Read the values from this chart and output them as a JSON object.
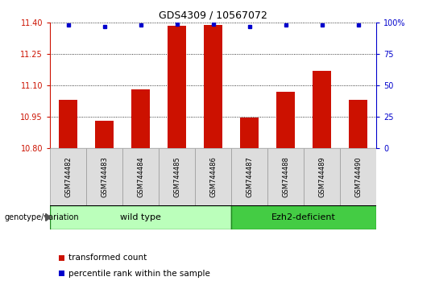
{
  "title": "GDS4309 / 10567072",
  "samples": [
    "GSM744482",
    "GSM744483",
    "GSM744484",
    "GSM744485",
    "GSM744486",
    "GSM744487",
    "GSM744488",
    "GSM744489",
    "GSM744490"
  ],
  "transformed_count": [
    11.03,
    10.93,
    11.08,
    11.385,
    11.39,
    10.945,
    11.07,
    11.17,
    11.03
  ],
  "percentile_rank": [
    98,
    97,
    98,
    99,
    99,
    97,
    98,
    98,
    98
  ],
  "ylim_left": [
    10.8,
    11.4
  ],
  "ylim_right": [
    0,
    100
  ],
  "yticks_left": [
    10.8,
    10.95,
    11.1,
    11.25,
    11.4
  ],
  "yticks_right": [
    0,
    25,
    50,
    75,
    100
  ],
  "bar_color": "#cc1100",
  "dot_color": "#0000cc",
  "bar_bottom": 10.8,
  "groups": [
    {
      "label": "wild type",
      "start": 0,
      "end": 5,
      "color": "#bbffbb"
    },
    {
      "label": "Ezh2-deficient",
      "start": 5,
      "end": 9,
      "color": "#44cc44"
    }
  ],
  "genotype_label": "genotype/variation",
  "legend_bar_label": "transformed count",
  "legend_dot_label": "percentile rank within the sample",
  "grid_color": "#000000",
  "tick_label_color_left": "#cc1100",
  "tick_label_color_right": "#0000cc",
  "xlabel_bg": "#dddddd",
  "xlabel_border": "#999999"
}
